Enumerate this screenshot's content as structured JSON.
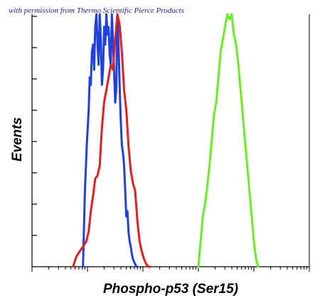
{
  "credit": "with permission from Thermo Scientific Pierce Products",
  "chart_data": {
    "type": "line",
    "title": "",
    "xlabel": "Phospho-p53 (Ser15)",
    "ylabel": "Events",
    "x_scale": "log",
    "xlim": [
      1,
      100000
    ],
    "ylim": [
      0,
      100
    ],
    "grid": false,
    "colors": {
      "blue": "#2040e0",
      "red": "#e02020",
      "green": "#66ee22"
    },
    "series": [
      {
        "color": "blue",
        "x": [
          8.3,
          9.0,
          9.7,
          10.5,
          11.0,
          11.5,
          12.0,
          12.6,
          13.2,
          13.8,
          14.5,
          15.2,
          15.9,
          16.6,
          17.4,
          18.2,
          19.1,
          20.0,
          20.9,
          21.9,
          22.9,
          24.0,
          25.1,
          26.3,
          27.5,
          28.8,
          30.2,
          31.6,
          33.1,
          34.7,
          36.3,
          38.0,
          39.8,
          41.7,
          43.7,
          45.7,
          47.9,
          50.1,
          52.5,
          55.0,
          57.5,
          60.3,
          63.1,
          66.1,
          69.2,
          72.4,
          75.9,
          79.4
        ],
        "y": [
          0,
          30,
          48,
          62,
          75,
          72,
          85,
          88,
          78,
          95,
          100,
          88,
          80,
          100,
          90,
          72,
          78,
          95,
          88,
          100,
          92,
          95,
          84,
          80,
          100,
          90,
          78,
          65,
          70,
          100,
          88,
          72,
          58,
          48,
          45,
          40,
          30,
          20,
          22,
          14,
          10,
          8,
          5,
          3,
          2,
          1,
          0,
          0
        ]
      },
      {
        "color": "red",
        "x": [
          5.5,
          6.3,
          7.2,
          8.3,
          9.5,
          10.5,
          11.5,
          12.6,
          13.8,
          15.1,
          16.6,
          18.2,
          19.9,
          21.9,
          24.0,
          26.3,
          28.8,
          31.6,
          34.7,
          38.0,
          41.7,
          45.7,
          50.1,
          55.0,
          60.3,
          66.1,
          72.4,
          79.4,
          87.1,
          95.5,
          104.7,
          114.8,
          125.9,
          138.0
        ],
        "y": [
          0,
          4,
          6,
          8,
          10,
          14,
          22,
          28,
          35,
          36,
          40,
          55,
          65,
          70,
          75,
          80,
          78,
          90,
          100,
          96,
          85,
          70,
          62,
          48,
          38,
          33,
          30,
          18,
          10,
          6,
          3,
          1,
          0,
          0
        ]
      },
      {
        "color": "green",
        "x": [
          1000,
          1096,
          1202,
          1318,
          1445,
          1585,
          1738,
          1905,
          2089,
          2291,
          2512,
          2754,
          3020,
          3311,
          3631,
          3981,
          4365,
          4786,
          5248,
          5754,
          6310,
          6918,
          7586,
          8318,
          9120,
          10000,
          10965,
          12023
        ],
        "y": [
          0,
          10,
          20,
          25,
          32,
          40,
          50,
          60,
          65,
          75,
          85,
          90,
          95,
          100,
          98,
          100,
          92,
          88,
          80,
          70,
          60,
          50,
          40,
          30,
          20,
          10,
          3,
          0
        ]
      }
    ]
  }
}
